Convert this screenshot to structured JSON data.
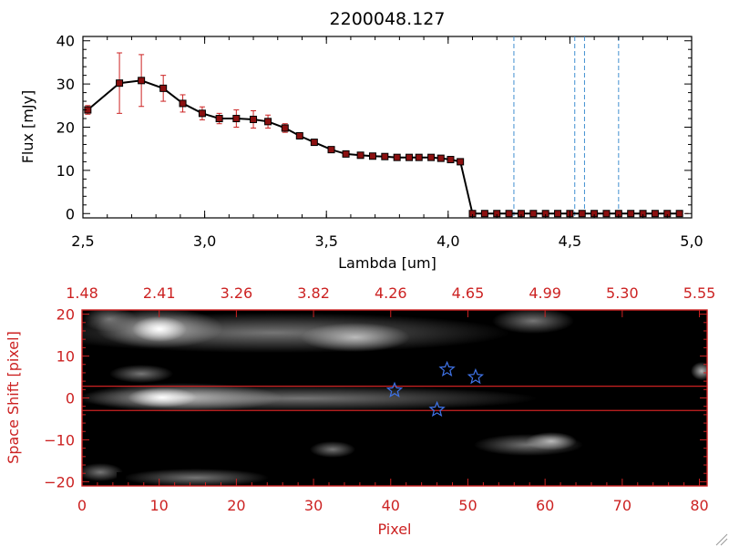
{
  "chart_data": [
    {
      "type": "line",
      "title": "2200048.127",
      "xlabel": "Lambda [um]",
      "ylabel": "Flux [mJy]",
      "xlim": [
        2.5,
        5.0
      ],
      "ylim": [
        -1,
        41
      ],
      "xticks": [
        2.5,
        3.0,
        3.5,
        4.0,
        4.5,
        5.0
      ],
      "xtick_labels": [
        "2,5",
        "3,0",
        "3,5",
        "4,0",
        "4,5",
        "5,0"
      ],
      "yticks": [
        0,
        10,
        20,
        30,
        40
      ],
      "ytick_labels": [
        "0",
        "10",
        "20",
        "30",
        "40"
      ],
      "grid": false,
      "series": [
        {
          "x": [
            2.52,
            2.65,
            2.74,
            2.83,
            2.91,
            2.99,
            3.06,
            3.13,
            3.2,
            3.26,
            3.33,
            3.39,
            3.45,
            3.52,
            3.58,
            3.64,
            3.69,
            3.74,
            3.79,
            3.84,
            3.88,
            3.93,
            3.97,
            4.01,
            4.05,
            4.1,
            4.15,
            4.2,
            4.25,
            4.3,
            4.35,
            4.4,
            4.45,
            4.5,
            4.55,
            4.6,
            4.65,
            4.7,
            4.75,
            4.8,
            4.85,
            4.9,
            4.95
          ],
          "y": [
            24.0,
            30.2,
            30.8,
            29.0,
            25.5,
            23.2,
            22.0,
            22.0,
            21.8,
            21.3,
            19.8,
            18.0,
            16.5,
            14.8,
            13.8,
            13.5,
            13.3,
            13.2,
            13.0,
            13.0,
            13.0,
            13.0,
            12.8,
            12.5,
            12.0,
            0,
            0,
            0,
            0,
            0,
            0,
            0,
            0,
            0,
            0,
            0,
            0,
            0,
            0,
            0,
            0,
            0,
            0
          ],
          "yerr": [
            1.0,
            7.0,
            6.0,
            3.0,
            2.0,
            1.5,
            1.2,
            2.0,
            2.0,
            1.5,
            1.0,
            0.6,
            0.5,
            0.5,
            0.4,
            0.4,
            0.4,
            0.3,
            0.3,
            0.3,
            0.3,
            0.3,
            0.3,
            0.3,
            0.3,
            0,
            0,
            0,
            0,
            0,
            0,
            0,
            0,
            0,
            0,
            0,
            0,
            0,
            0,
            0,
            0,
            0,
            0
          ]
        }
      ],
      "vlines": [
        4.27,
        4.52,
        4.56,
        4.7
      ],
      "colors": {
        "line": "#000000",
        "marker": "#8b1010",
        "errorbar": "#cc2222",
        "vline": "#3f8fd0",
        "zeroline": "#cc2222"
      }
    },
    {
      "type": "heatmap",
      "xlabel": "Pixel",
      "ylabel": "Space Shift [pixel]",
      "xlim": [
        0,
        81
      ],
      "ylim": [
        -21,
        21
      ],
      "xticks": [
        0,
        10,
        20,
        30,
        40,
        50,
        60,
        70,
        80
      ],
      "xtick_labels": [
        "0",
        "10",
        "20",
        "30",
        "40",
        "50",
        "60",
        "70",
        "80"
      ],
      "yticks": [
        -20,
        -10,
        0,
        10,
        20
      ],
      "ytick_labels": [
        "−20",
        "−10",
        "0",
        "10",
        "20"
      ],
      "top_axis_ticks": [
        0,
        10,
        20,
        30,
        40,
        50,
        60,
        70,
        80
      ],
      "top_axis_labels": [
        "1.48",
        "2.41",
        "3.26",
        "3.82",
        "4.26",
        "4.65",
        "4.99",
        "5.30",
        "5.55"
      ],
      "hlines": [
        2.8,
        -3.0
      ],
      "stars": [
        [
          40.5,
          1.8
        ],
        [
          46.0,
          -2.8
        ],
        [
          47.3,
          6.8
        ],
        [
          51.0,
          5.0
        ]
      ],
      "colors": {
        "axis": "#cc2222",
        "star": "#3f73e8",
        "hline": "#cc2222"
      }
    }
  ]
}
